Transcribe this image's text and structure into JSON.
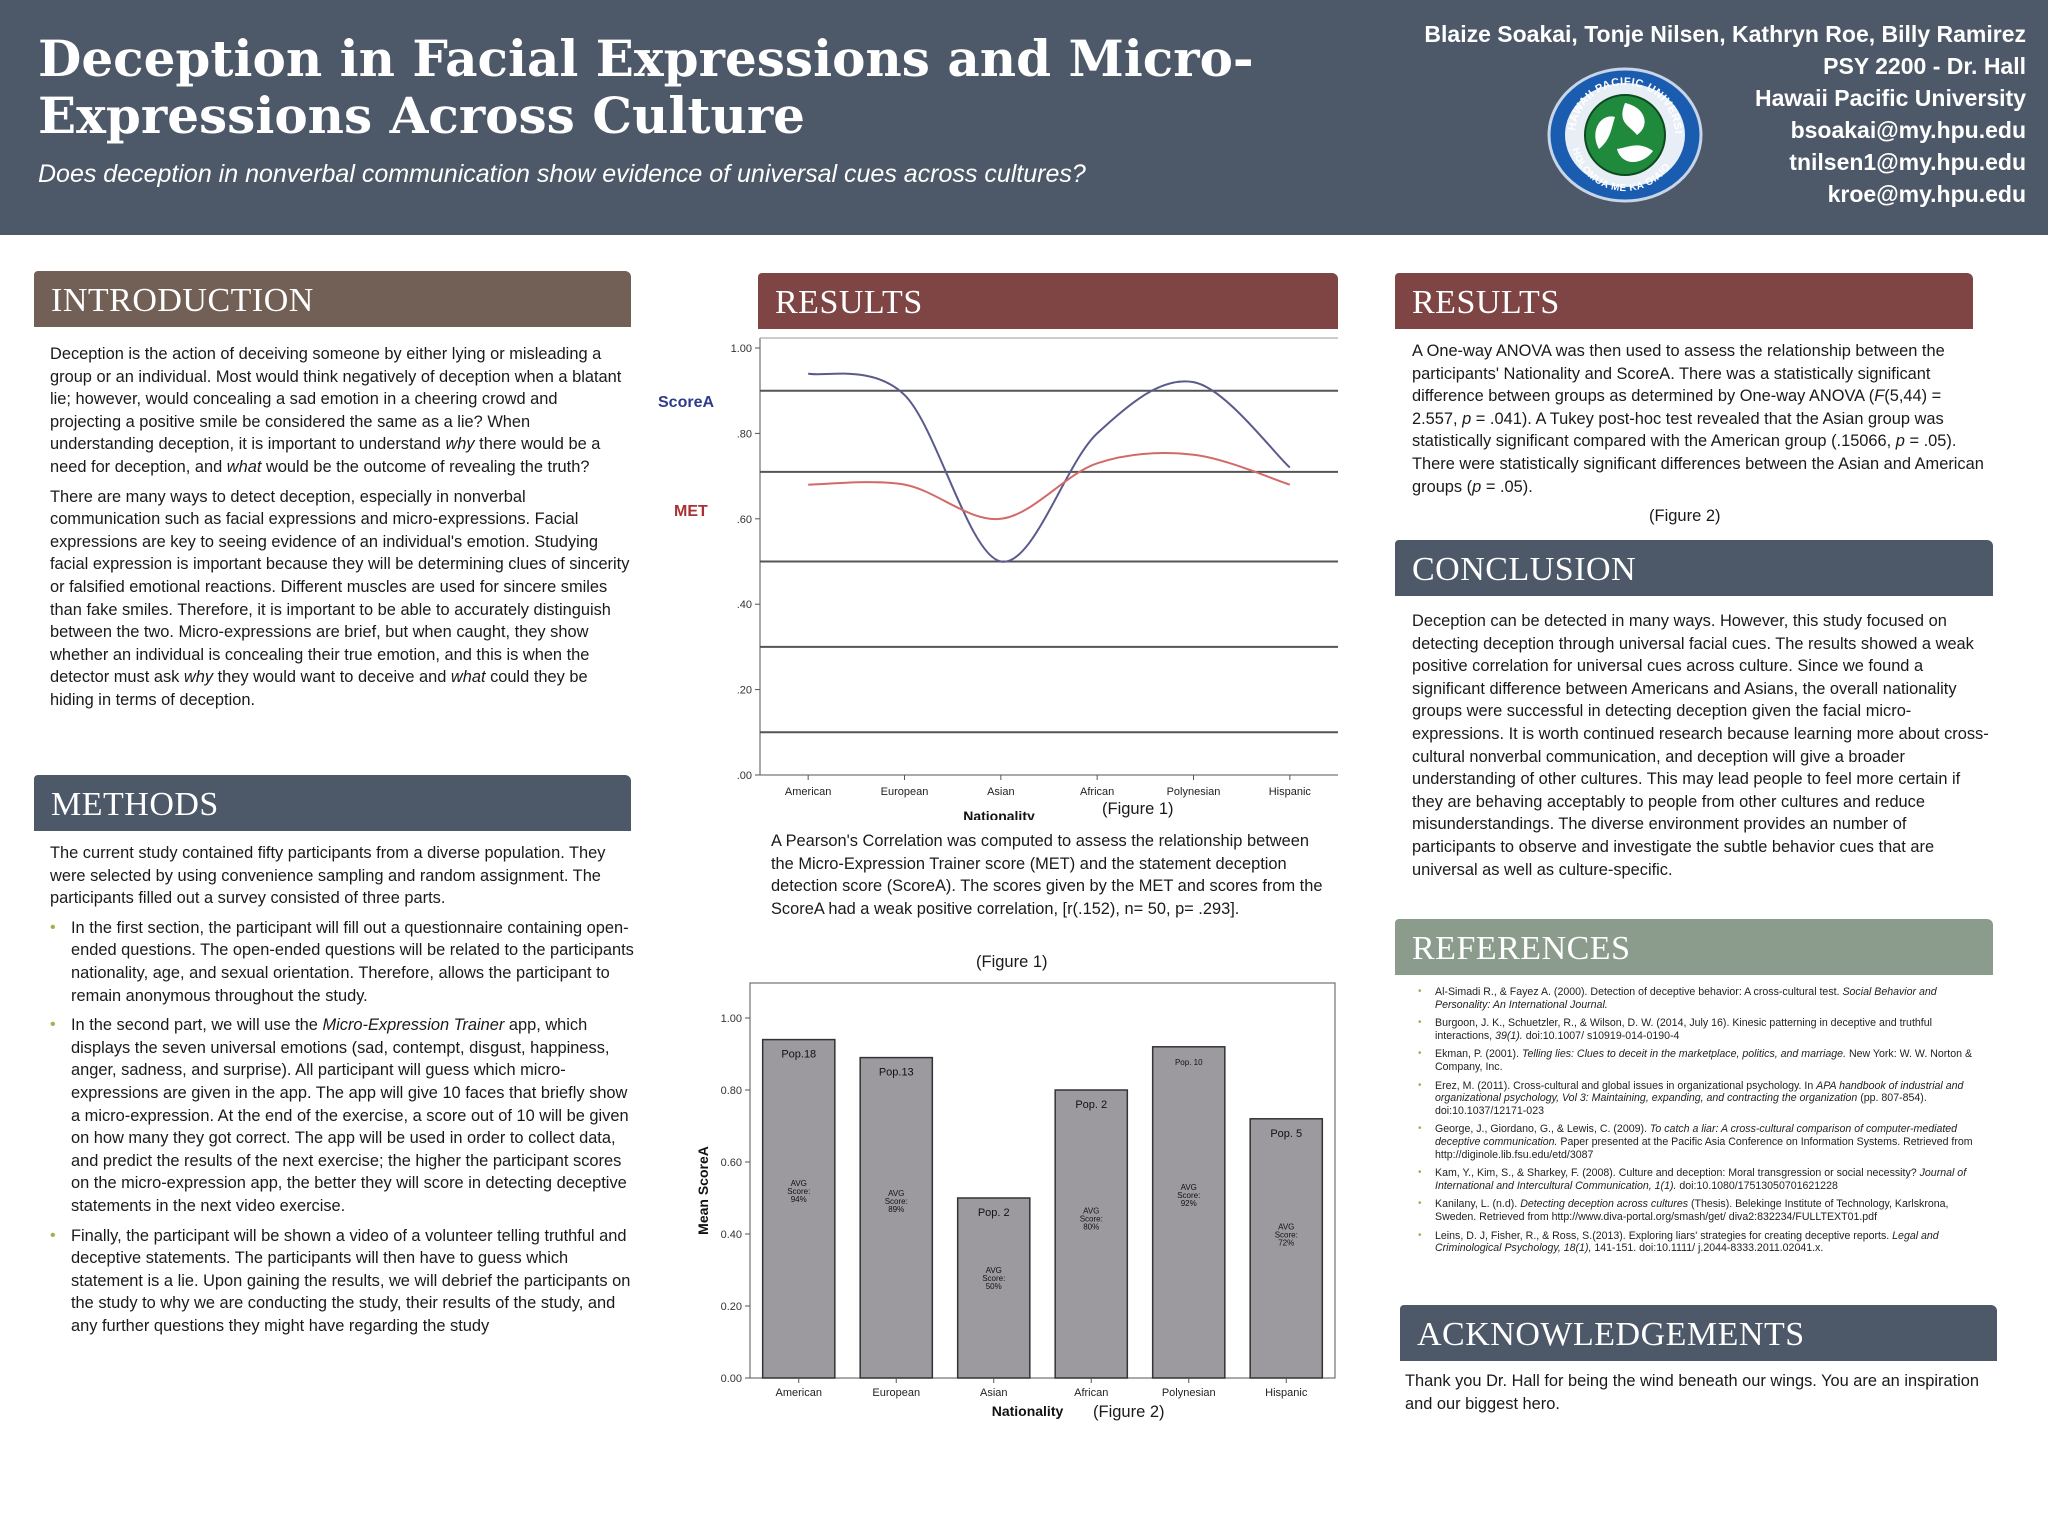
{
  "header": {
    "title": "Deception in Facial Expressions and Micro-Expressions Across Culture",
    "subtitle": "Does deception in nonverbal communication show evidence of universal cues across cultures?",
    "authors": [
      "Blaize Soakai, Tonje Nilsen, Kathryn Roe, Billy Ramirez",
      "PSY 2200 - Dr. Hall",
      "Hawaii Pacific University",
      "bsoakai@my.hpu.edu",
      "tnilsen1@my.hpu.edu",
      "kroe@my.hpu.edu"
    ],
    "logo_text": "HAWAII PACIFIC UNIVERSITY · HOLOMUA ME KA OIAIO"
  },
  "introduction": {
    "heading": "INTRODUCTION",
    "p1_a": "Deception is the action of deceiving someone by either lying or misleading a group or an individual. Most would think negatively of deception when a blatant lie; however, would concealing a sad emotion in a cheering crowd and projecting a positive smile be considered the same as a lie? When understanding deception, it is important to understand ",
    "p1_em1": "why",
    "p1_b": " there would be a need for deception, and ",
    "p1_em2": "what",
    "p1_c": " would be the outcome of revealing the truth?",
    "p2_a": "There are many ways to detect deception, especially in nonverbal communication such as facial expressions and micro-expressions. Facial expressions are key to seeing evidence of an individual's emotion. Studying facial expression is important because they will be determining clues of sincerity or falsified emotional reactions. Different muscles are used for sincere smiles than fake smiles. Therefore, it is important to be able to accurately distinguish between the two. Micro-expressions are brief, but when caught, they show whether an individual is concealing their true emotion, and this is when the detector must ask ",
    "p2_em1": "why",
    "p2_b": " they would want to deceive and ",
    "p2_em2": "what",
    "p2_c": " could they be hiding in terms of deception."
  },
  "methods": {
    "heading": "METHODS",
    "intro": "The current study contained fifty participants from a diverse population. They were selected by using convenience sampling and random assignment. The participants filled out a survey consisted of three parts.",
    "b1": "In the first section, the participant will fill out a questionnaire containing open-ended questions. The open-ended questions will be related to the participants nationality, age, and sexual orientation. Therefore, allows the participant to remain anonymous throughout the study.",
    "b2_a": "In the second part, we will use the ",
    "b2_em": "Micro-Expression Trainer",
    "b2_b": " app, which displays the seven universal emotions (sad, contempt, disgust, happiness, anger, sadness, and surprise). All participant will guess which micro-expressions are given in the app. The app will give 10 faces that briefly show a micro-expression. At the end of the exercise, a score out of 10 will be given on how many they got correct. The app will be used in order to collect data, and predict the results of the next exercise; the higher the participant scores on the micro-expression app, the better they will score in detecting deceptive statements in the next video exercise.",
    "b3": "Finally, the participant will be shown a video of a volunteer telling truthful and deceptive statements. The participants will then have to guess which statement is a lie. Upon gaining the results, we will debrief the participants on the study to why we are conducting the study, their results of the study, and any further questions they might have regarding the study"
  },
  "results_mid": {
    "heading": "RESULTS",
    "text": "A Pearson's Correlation was computed to assess the relationship between the Micro-Expression Trainer score (MET) and the statement deception detection score (ScoreA). The scores given by the MET and scores from the ScoreA had a weak positive correlation, [r(.152), n= 50, p= .293].",
    "fig1_ref": "(Figure 1)"
  },
  "results_right": {
    "heading": "RESULTS",
    "text_a": "A One-way ANOVA was then used to assess the relationship between the participants' Nationality and ScoreA. There was a statistically significant difference between groups as determined by One-way ANOVA (",
    "text_f": "F",
    "text_b": "(5,44) = 2.557, ",
    "text_p1": "p",
    "text_c": " = .041). A Tukey post-hoc test revealed that the Asian group was statistically significant compared with the American group (.15066, ",
    "text_p2": "p",
    "text_d": " = .05). There were statistically significant differences between the Asian and American groups (",
    "text_p3": "p",
    "text_e": " = .05).",
    "fig2_ref": "(Figure 2)"
  },
  "conclusion": {
    "heading": "CONCLUSION",
    "text": "Deception can be detected in many ways. However, this study focused on detecting deception through universal facial cues. The results showed a weak positive correlation for universal cues across culture. Since we found a significant difference between Americans and Asians, the overall nationality groups were successful in detecting deception given the facial micro-expressions. It is worth continued research because learning more about cross-cultural nonverbal communication, and deception will give a broader understanding of other cultures. This may lead people to feel more certain if they are behaving acceptably to people from other cultures and reduce misunderstandings. The diverse environment provides an number of participants to observe and investigate the subtle behavior cues that are universal as well as culture-specific."
  },
  "references": {
    "heading": "REFERENCES",
    "r1_a": "Al-Simadi R., & Fayez A. (2000). Detection of deceptive behavior: A cross-cultural test. ",
    "r1_em": "Social Behavior and Personality: An International Journal.",
    "r2_a": "Burgoon, J. K., Schuetzler, R., & Wilson, D. W. (2014, July 16). Kinesic patterning in deceptive and truthful interactions, ",
    "r2_em": "39(1).",
    "r2_b": " doi:10.1007/ s10919-014-0190-4",
    "r3_a": "Ekman, P. (2001). ",
    "r3_em": "Telling lies: Clues to deceit in the marketplace, politics, and marriage.",
    "r3_b": " New York: W. W. Norton & Company, Inc.",
    "r4_a": "Erez, M. (2011). Cross-cultural and global issues in organizational psychology. In ",
    "r4_em": "APA handbook of industrial and organizational psychology, Vol 3: Maintaining, expanding, and contracting the organization",
    "r4_b": " (pp. 807-854). doi:10.1037/12171-023",
    "r5_a": "George, J., Giordano, G., & Lewis, C. (2009). ",
    "r5_em": "To catch a liar: A cross-cultural comparison of computer-mediated deceptive communication.",
    "r5_b": " Paper presented at the Pacific Asia Conference on Information Systems. Retrieved from http://diginole.lib.fsu.edu/etd/3087",
    "r6_a": "Kam, Y., Kim, S., & Sharkey, F. (2008). Culture and deception: Moral transgression or social necessity? ",
    "r6_em": "Journal of International and Intercultural Communication, 1(1).",
    "r6_b": " doi:10.1080/17513050701621228",
    "r7_a": "Kanilany, L. (n.d). ",
    "r7_em": "Detecting deception across cultures",
    "r7_b": " (Thesis). Belekinge Institute of Technology, Karlskrona, Sweden. Retrieved from http://www.diva-portal.org/smash/get/ diva2:832234/FULLTEXT01.pdf",
    "r8_a": "Leins, D. J, Fisher, R., & Ross, S.(2013). Exploring liars' strategies for creating deceptive reports. ",
    "r8_em": "Legal and Criminological Psychology, 18(1),",
    "r8_b": " 141-151. doi:10.1111/ j.2044-8333.2011.02041.x."
  },
  "acknowledgements": {
    "heading": "ACKNOWLEDGEMENTS",
    "text": "Thank you Dr. Hall for being the wind beneath our wings. You are an inspiration and our biggest hero."
  },
  "colors": {
    "header_bg": "#4d5868",
    "intro_head": "#725f55",
    "results_head": "#7f4544",
    "slate_head": "#4d5868",
    "refs_head": "#8c9c8c",
    "bullet": "#9bb34a",
    "scorea_line": "#5a5a8c",
    "met_line": "#d36a6a",
    "bar_fill": "#9c9a9f"
  },
  "chart_data": [
    {
      "type": "line",
      "title": "",
      "categories": [
        "American",
        "European",
        "Asian",
        "African",
        "Polynesian",
        "Hispanic"
      ],
      "series": [
        {
          "name": "ScoreA",
          "values": [
            0.94,
            0.89,
            0.5,
            0.8,
            0.92,
            0.72
          ]
        },
        {
          "name": "MET",
          "values": [
            0.68,
            0.68,
            0.6,
            0.73,
            0.75,
            0.68
          ]
        }
      ],
      "xlabel": "Nationality",
      "ylabel": "",
      "ylim": [
        0,
        1.0
      ],
      "yticks": [
        ".00",
        ".20",
        ".40",
        ".60",
        ".80",
        "1.00"
      ],
      "caption": "(Figure 1)"
    },
    {
      "type": "bar",
      "title": "",
      "categories": [
        "American",
        "European",
        "Asian",
        "African",
        "Polynesian",
        "Hispanic"
      ],
      "values": [
        0.94,
        0.89,
        0.5,
        0.8,
        0.92,
        0.72
      ],
      "pop_labels": [
        "Pop.18",
        "Pop.13",
        "Pop. 2",
        "Pop. 2",
        "Pop. 10",
        "Pop. 5"
      ],
      "avg_labels": [
        [
          "AVG",
          "Score:",
          "94%"
        ],
        [
          "AVG",
          "Score:",
          "89%"
        ],
        [
          "AVG",
          "Score:",
          "50%"
        ],
        [
          "AVG",
          "Score:",
          "80%"
        ],
        [
          "AVG",
          "Score:",
          "92%"
        ],
        [
          "AVG",
          "Score:",
          "72%"
        ]
      ],
      "xlabel": "Nationality",
      "ylabel": "Mean ScoreA",
      "ylim": [
        0,
        1.0
      ],
      "yticks": [
        "0.00",
        "0.20",
        "0.40",
        "0.60",
        "0.80",
        "1.00"
      ],
      "caption": "(Figure 2)"
    }
  ]
}
